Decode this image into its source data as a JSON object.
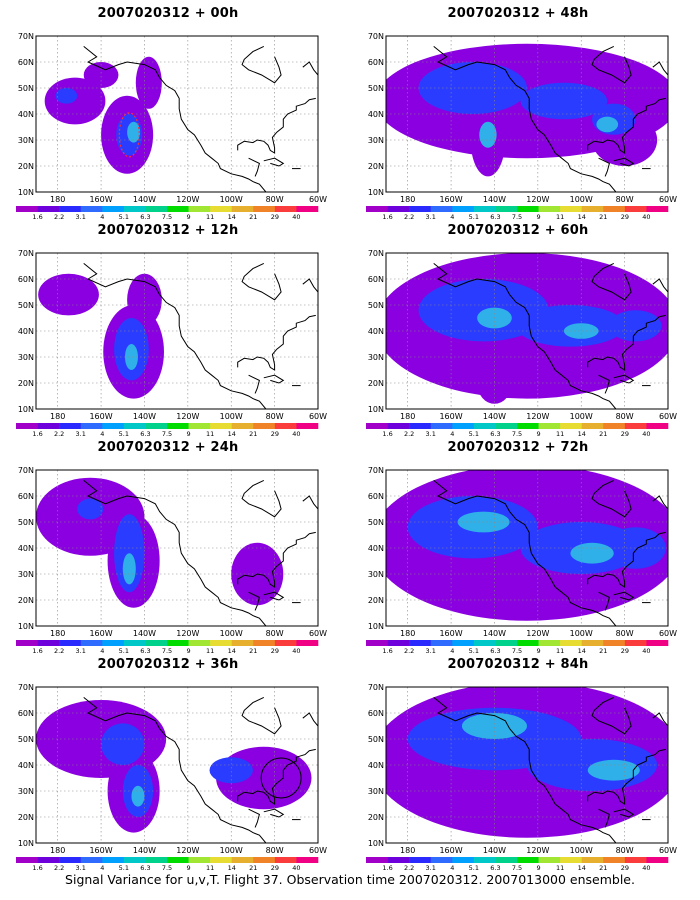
{
  "figure": {
    "caption": "Signal Variance for u,v,T. Flight 37. Observation time 2007020312. 2007013000 ensemble.",
    "panels": [
      {
        "id": "00h",
        "title": "2007020312 + 00h"
      },
      {
        "id": "48h",
        "title": "2007020312 + 48h"
      },
      {
        "id": "12h",
        "title": "2007020312 + 12h"
      },
      {
        "id": "60h",
        "title": "2007020312 + 60h"
      },
      {
        "id": "24h",
        "title": "2007020312 + 24h"
      },
      {
        "id": "72h",
        "title": "2007020312 + 72h"
      },
      {
        "id": "36h",
        "title": "2007020312 + 36h"
      },
      {
        "id": "84h",
        "title": "2007020312 + 84h"
      }
    ],
    "lat_labels": [
      "70N",
      "60N",
      "50N",
      "40N",
      "30N",
      "20N",
      "10N"
    ],
    "lon_labels": [
      "180",
      "160W",
      "140W",
      "120W",
      "100W",
      "80W",
      "60W"
    ],
    "color_scale": {
      "labels": [
        "1.6",
        "2.2",
        "3.1",
        "4",
        "5.1",
        "6.3",
        "7.5",
        "9",
        "11",
        "14",
        "21",
        "29",
        "40"
      ],
      "colors": [
        "#a000c8",
        "#6e00dc",
        "#2a2aff",
        "#2f6bff",
        "#00a0ff",
        "#00c8c8",
        "#00d28c",
        "#00dc00",
        "#a0e632",
        "#e6dc32",
        "#e6af2d",
        "#f08228",
        "#fa3c3c",
        "#f00082"
      ]
    }
  }
}
